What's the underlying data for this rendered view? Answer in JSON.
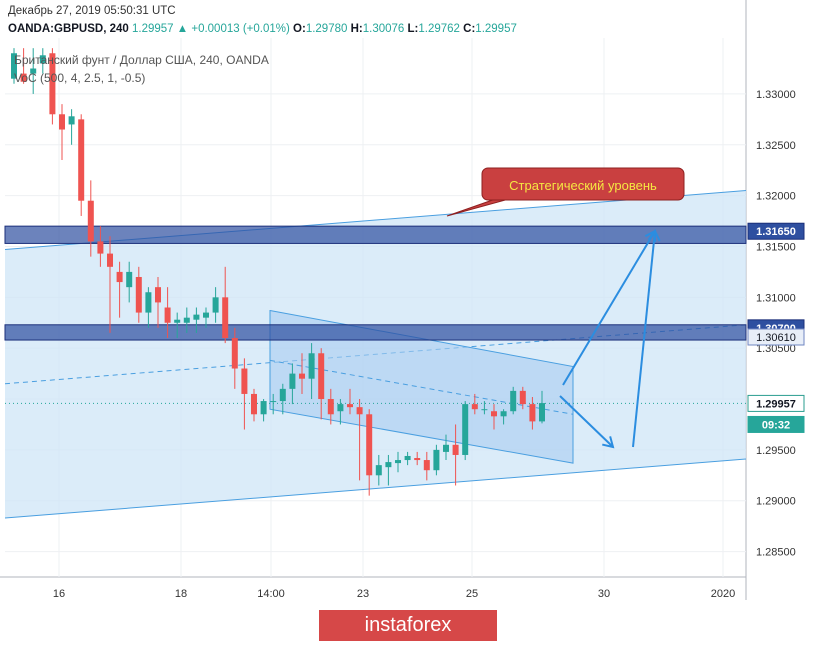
{
  "header": {
    "datetime": "Декабрь 27, 2019 05:50:31 UTC",
    "symbol_line": "OANDA:GBPUSD, 240",
    "last": "1.29957",
    "change": "+0.00013 (+0.01%)",
    "open_label": "O:",
    "open": "1.29780",
    "high_label": "H:",
    "high": "1.30076",
    "low_label": "L:",
    "low": "1.29762",
    "close_label": "C:",
    "close": "1.29957",
    "instrument_name": "Британский фунт / Доллар США, 240, OANDA",
    "indicator": "VoC (500, 4, 2.5, 1, -0.5)"
  },
  "branding": {
    "text": "instaforex",
    "color": "#d64848"
  },
  "colors": {
    "bull": "#26a69a",
    "bear": "#ef5350",
    "channel_fill": "#cfe5f7",
    "channel_line": "#4a9fe0",
    "zone_fill": "#2e4fa0",
    "arrow": "#2b8de0",
    "callout_fill": "#c94040",
    "callout_text": "#f5e642"
  },
  "chart_data": {
    "type": "candlestick",
    "symbol": "GBPUSD",
    "timeframe": "240",
    "ylim": [
      1.2825,
      1.3355
    ],
    "y_ticks": [
      "1.33000",
      "1.32500",
      "1.32000",
      "1.31500",
      "1.31000",
      "1.30500",
      "1.30000",
      "1.29500",
      "1.29000",
      "1.28500"
    ],
    "x_ticks": [
      "16",
      "18",
      "14:00",
      "23",
      "25",
      "30",
      "2020"
    ],
    "price_labels": [
      {
        "text": "1.31650",
        "value": 1.3165,
        "style": "zone"
      },
      {
        "text": "1.30700",
        "value": 1.307,
        "style": "zone"
      },
      {
        "text": "1.30610",
        "value": 1.3061,
        "style": "level"
      },
      {
        "text": "1.29957",
        "value": 1.29957,
        "style": "last"
      },
      {
        "text": "09:32",
        "value": 1.2975,
        "style": "timer"
      }
    ],
    "candles": [
      [
        1.3315,
        1.3345,
        1.331,
        1.334
      ],
      [
        1.332,
        1.3345,
        1.331,
        1.3312
      ],
      [
        1.332,
        1.3345,
        1.33,
        1.3325
      ],
      [
        1.333,
        1.3345,
        1.332,
        1.3338
      ],
      [
        1.334,
        1.3345,
        1.327,
        1.328
      ],
      [
        1.328,
        1.329,
        1.3235,
        1.3265
      ],
      [
        1.327,
        1.3285,
        1.325,
        1.3278
      ],
      [
        1.3275,
        1.328,
        1.318,
        1.3195
      ],
      [
        1.3195,
        1.3215,
        1.314,
        1.3155
      ],
      [
        1.3155,
        1.317,
        1.313,
        1.3143
      ],
      [
        1.3143,
        1.316,
        1.3065,
        1.313
      ],
      [
        1.3125,
        1.3135,
        1.308,
        1.3115
      ],
      [
        1.311,
        1.3135,
        1.3095,
        1.3125
      ],
      [
        1.312,
        1.313,
        1.3075,
        1.3085
      ],
      [
        1.3085,
        1.311,
        1.307,
        1.3105
      ],
      [
        1.311,
        1.312,
        1.307,
        1.3095
      ],
      [
        1.309,
        1.311,
        1.306,
        1.3075
      ],
      [
        1.3075,
        1.3085,
        1.306,
        1.3078
      ],
      [
        1.3075,
        1.309,
        1.3065,
        1.308
      ],
      [
        1.3078,
        1.309,
        1.3065,
        1.3083
      ],
      [
        1.308,
        1.309,
        1.307,
        1.3085
      ],
      [
        1.3085,
        1.311,
        1.3075,
        1.31
      ],
      [
        1.31,
        1.313,
        1.3055,
        1.306
      ],
      [
        1.306,
        1.307,
        1.301,
        1.303
      ],
      [
        1.303,
        1.304,
        1.297,
        1.3005
      ],
      [
        1.3005,
        1.301,
        1.2978,
        1.2985
      ],
      [
        1.2985,
        1.3,
        1.2978,
        1.2998
      ],
      [
        1.2998,
        1.3005,
        1.2985,
        1.2998
      ],
      [
        1.2998,
        1.3015,
        1.2985,
        1.301
      ],
      [
        1.301,
        1.3035,
        1.2995,
        1.3025
      ],
      [
        1.3025,
        1.3045,
        1.3005,
        1.302
      ],
      [
        1.302,
        1.3055,
        1.3,
        1.3045
      ],
      [
        1.3045,
        1.305,
        1.298,
        1.3
      ],
      [
        1.3,
        1.301,
        1.2975,
        1.2985
      ],
      [
        1.2988,
        1.3,
        1.2975,
        1.2995
      ],
      [
        1.2995,
        1.301,
        1.2985,
        1.2992
      ],
      [
        1.2992,
        1.3,
        1.292,
        1.2985
      ],
      [
        1.2985,
        1.299,
        1.2905,
        1.2925
      ],
      [
        1.2925,
        1.2945,
        1.2915,
        1.2935
      ],
      [
        1.2933,
        1.2945,
        1.2915,
        1.2938
      ],
      [
        1.2937,
        1.2948,
        1.2928,
        1.294
      ],
      [
        1.294,
        1.2948,
        1.2935,
        1.2944
      ],
      [
        1.2942,
        1.2948,
        1.2935,
        1.294
      ],
      [
        1.294,
        1.2948,
        1.292,
        1.293
      ],
      [
        1.293,
        1.2955,
        1.2925,
        1.295
      ],
      [
        1.2948,
        1.2965,
        1.294,
        1.2955
      ],
      [
        1.2955,
        1.2975,
        1.2915,
        1.2945
      ],
      [
        1.2945,
        1.2998,
        1.294,
        1.2995
      ],
      [
        1.2995,
        1.3005,
        1.2985,
        1.299
      ],
      [
        1.299,
        1.2998,
        1.2985,
        1.299
      ],
      [
        1.2988,
        1.2995,
        1.297,
        1.2983
      ],
      [
        1.2983,
        1.299,
        1.2975,
        1.2988
      ],
      [
        1.2988,
        1.3012,
        1.2985,
        1.3008
      ],
      [
        1.3008,
        1.3012,
        1.299,
        1.2995
      ],
      [
        1.2995,
        1.3002,
        1.297,
        1.2978
      ],
      [
        1.2978,
        1.3008,
        1.2976,
        1.2996
      ]
    ],
    "last_price": 1.29957,
    "zones": [
      {
        "top": 1.317,
        "bottom": 1.3153
      },
      {
        "top": 1.3073,
        "bottom": 1.3058
      }
    ],
    "annotation": "Стратегический уровень",
    "grid": true
  }
}
